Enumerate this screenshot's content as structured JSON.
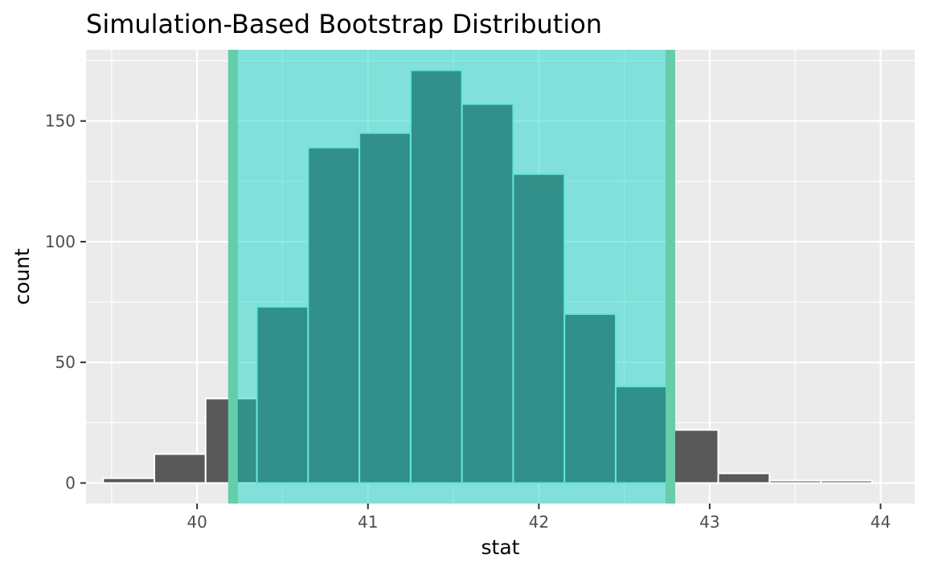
{
  "chart_data": {
    "type": "bar",
    "title": "Simulation-Based Bootstrap Distribution",
    "xlabel": "stat",
    "ylabel": "count",
    "xlim": [
      39.35,
      44.2
    ],
    "ylim": [
      -8.5,
      179.5
    ],
    "x_ticks": [
      40,
      41,
      42,
      43,
      44
    ],
    "y_ticks": [
      0,
      50,
      100,
      150
    ],
    "bin_width": 0.3,
    "bins": [
      {
        "center": 39.6,
        "count": 2
      },
      {
        "center": 39.9,
        "count": 12
      },
      {
        "center": 40.2,
        "count": 35
      },
      {
        "center": 40.5,
        "count": 73
      },
      {
        "center": 40.8,
        "count": 139
      },
      {
        "center": 41.1,
        "count": 145
      },
      {
        "center": 41.4,
        "count": 171
      },
      {
        "center": 41.7,
        "count": 157
      },
      {
        "center": 42.0,
        "count": 128
      },
      {
        "center": 42.3,
        "count": 70
      },
      {
        "center": 42.6,
        "count": 40
      },
      {
        "center": 42.9,
        "count": 22
      },
      {
        "center": 43.2,
        "count": 4
      },
      {
        "center": 43.5,
        "count": 1
      },
      {
        "center": 43.8,
        "count": 1
      }
    ],
    "ci": {
      "lower": 40.21,
      "upper": 42.77
    },
    "grid": true,
    "colors": {
      "panel": "#ebebeb",
      "grid": "#ffffff",
      "bar_fill": "#595959",
      "bar_outline": "#ffffff",
      "ci_fill": "#00d2c3",
      "ci_fill_opacity": 0.45,
      "ci_line": "#66cdaa",
      "bar_outline_in_ci": "#b5f5ee"
    }
  }
}
